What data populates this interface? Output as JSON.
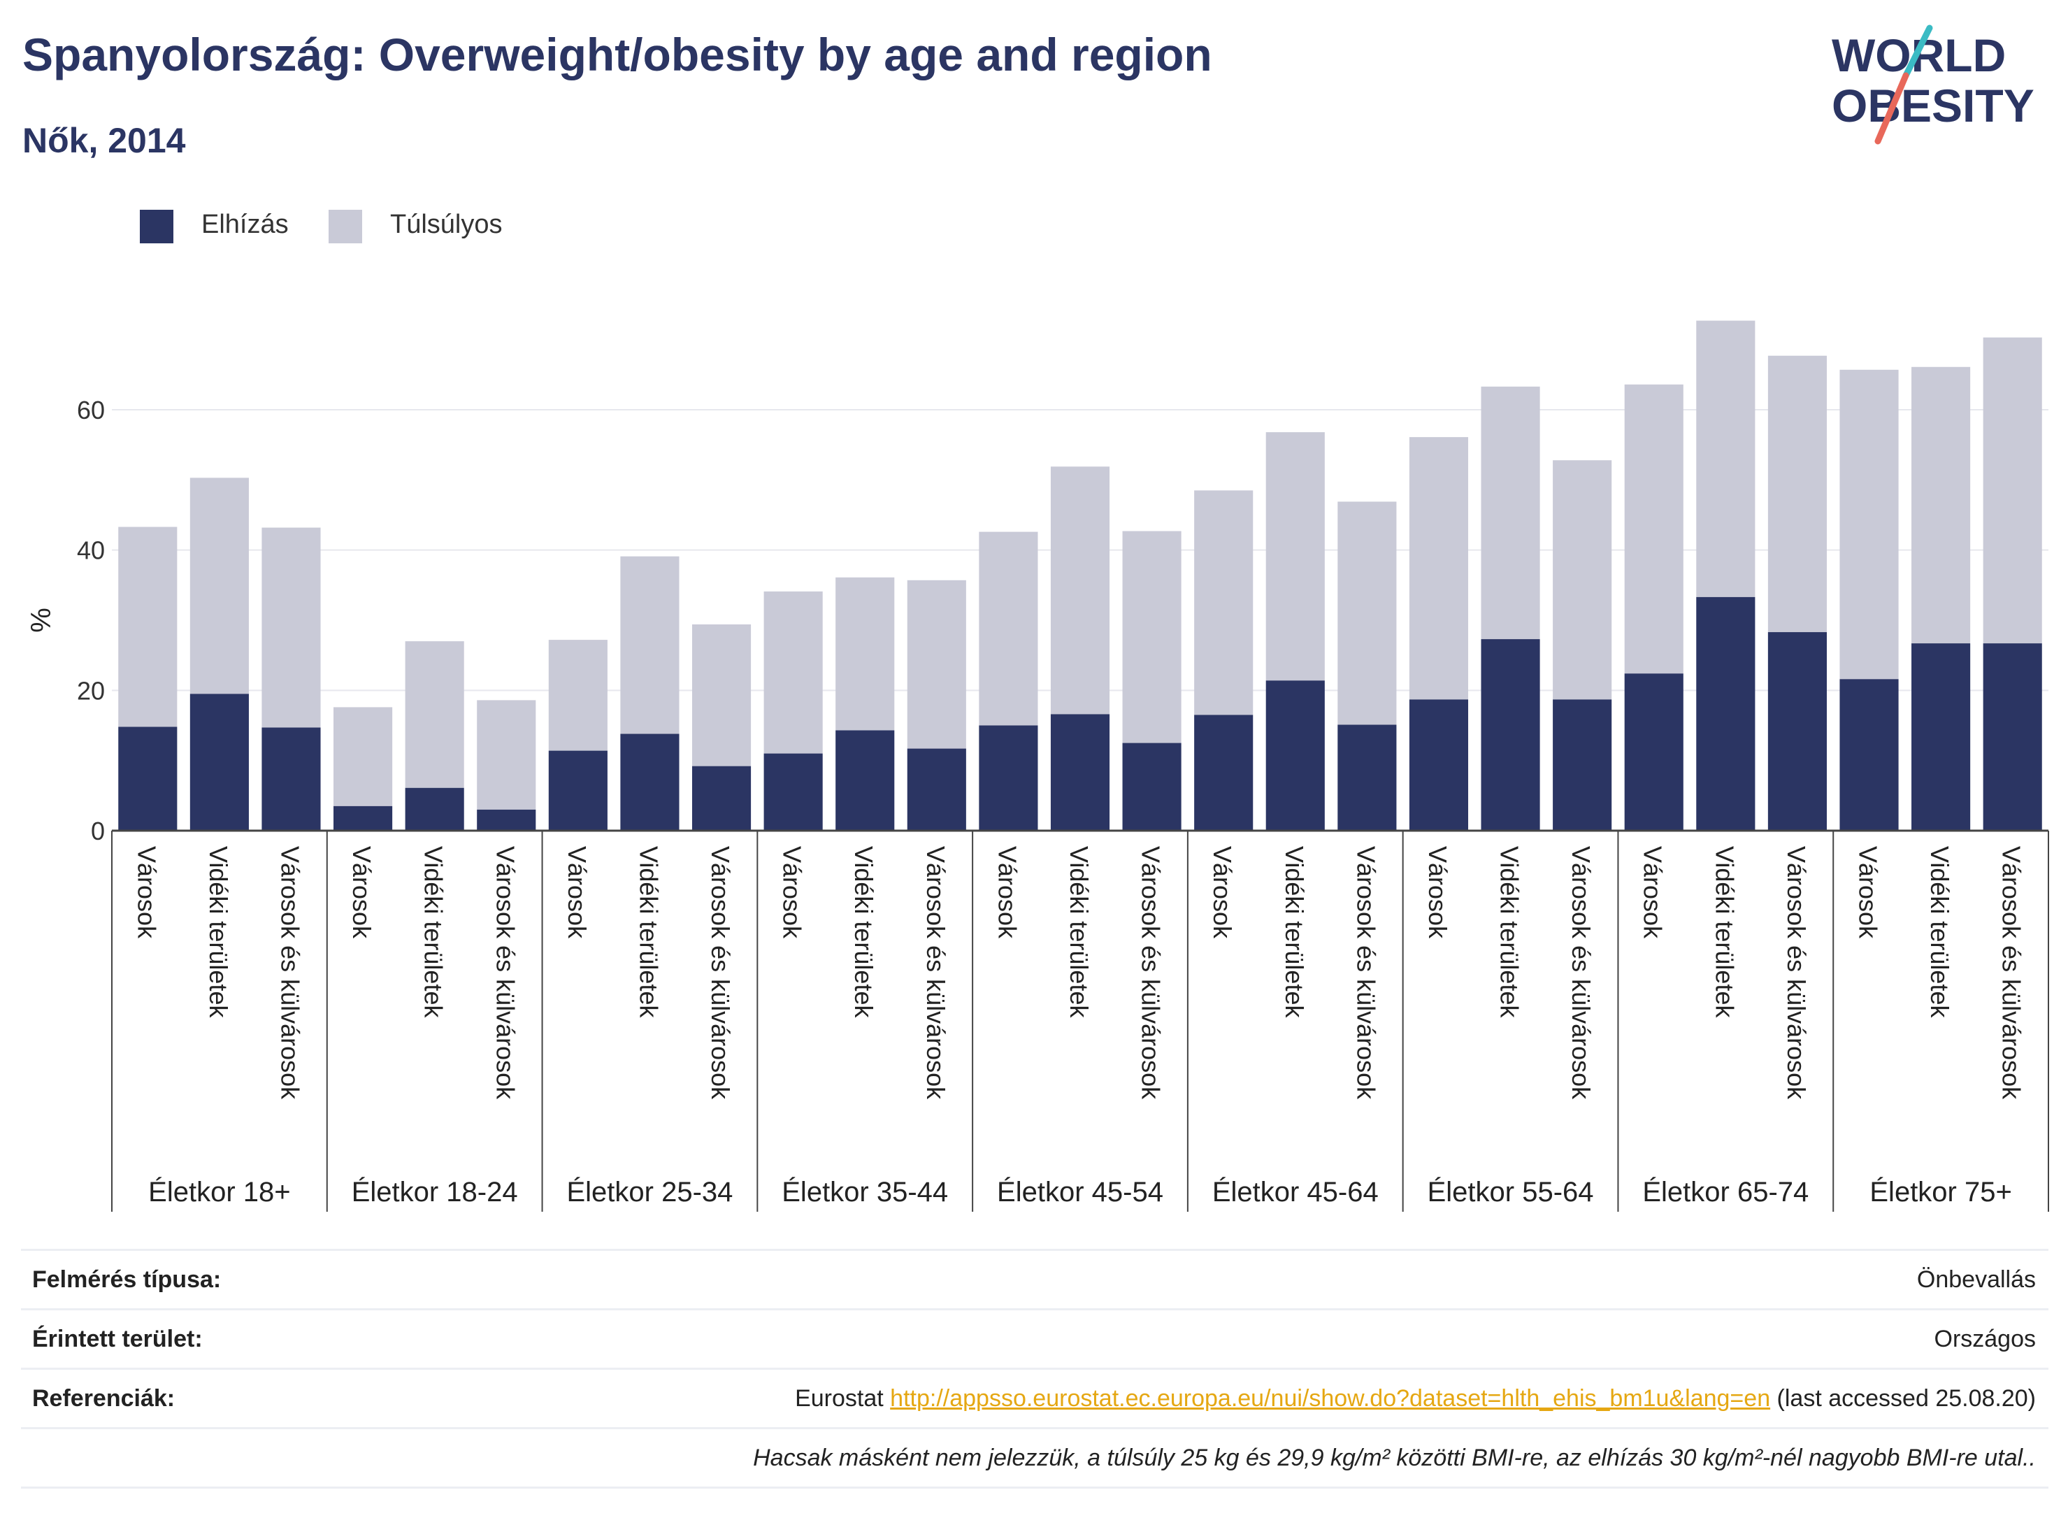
{
  "header": {
    "title": "Spanyolország: Overweight/obesity by age and region",
    "subtitle": "Nők, 2014"
  },
  "logo": {
    "line1": "WORLD",
    "line2": "OBESITY"
  },
  "colors": {
    "obesity": "#2b3563",
    "overweight": "#c9cad7",
    "accent_teal": "#3bbbc4",
    "accent_red": "#e8685a",
    "link": "#e5a712"
  },
  "chart_data": {
    "type": "bar",
    "stacked": true,
    "ylabel": "%",
    "ylim": [
      0,
      75
    ],
    "yticks": [
      0,
      20,
      40,
      60
    ],
    "grid": true,
    "legend_position": "top-left",
    "subcategories": [
      "Városok",
      "Vidéki területek",
      "Városok és külvárosok"
    ],
    "groups": [
      "Életkor 18+",
      "Életkor 18-24",
      "Életkor 25-34",
      "Életkor 35-44",
      "Életkor 45-54",
      "Életkor 45-64",
      "Életkor 55-64",
      "Életkor 65-74",
      "Életkor 75+"
    ],
    "series": [
      {
        "name": "Elhízás",
        "values": [
          [
            14.8,
            19.5,
            14.7
          ],
          [
            3.5,
            6.1,
            3.0
          ],
          [
            11.4,
            13.8,
            9.2
          ],
          [
            11.0,
            14.3,
            11.7
          ],
          [
            15.0,
            16.6,
            12.5
          ],
          [
            16.5,
            21.4,
            15.1
          ],
          [
            18.7,
            27.3,
            18.7
          ],
          [
            22.4,
            33.3,
            28.3
          ],
          [
            21.6,
            26.7,
            26.7
          ]
        ]
      },
      {
        "name": "Túlsúlyos",
        "values": [
          [
            28.5,
            30.8,
            28.5
          ],
          [
            14.1,
            20.9,
            15.6
          ],
          [
            15.8,
            25.3,
            20.2
          ],
          [
            23.1,
            21.8,
            24.0
          ],
          [
            27.6,
            35.3,
            30.2
          ],
          [
            32.0,
            35.4,
            31.8
          ],
          [
            37.4,
            36.0,
            34.1
          ],
          [
            41.2,
            39.4,
            39.4
          ],
          [
            44.1,
            39.4,
            43.6
          ]
        ]
      }
    ]
  },
  "footer": {
    "rows": [
      {
        "label": "Felmérés típusa:",
        "value": "Önbevallás"
      },
      {
        "label": "Érintett terület:",
        "value": "Országos"
      },
      {
        "label": "Referenciák:",
        "value_prefix": "Eurostat ",
        "link": "http://appsso.eurostat.ec.europa.eu/nui/show.do?dataset=hlth_ehis_bm1u&lang=en",
        "value_suffix": " (last accessed 25.08.20)"
      },
      {
        "label": "",
        "note": "Hacsak másként nem jelezzük, a túlsúly 25 kg és 29,9 kg/m² közötti BMI-re, az elhízás 30 kg/m²-nél nagyobb BMI-re utal.."
      }
    ]
  }
}
